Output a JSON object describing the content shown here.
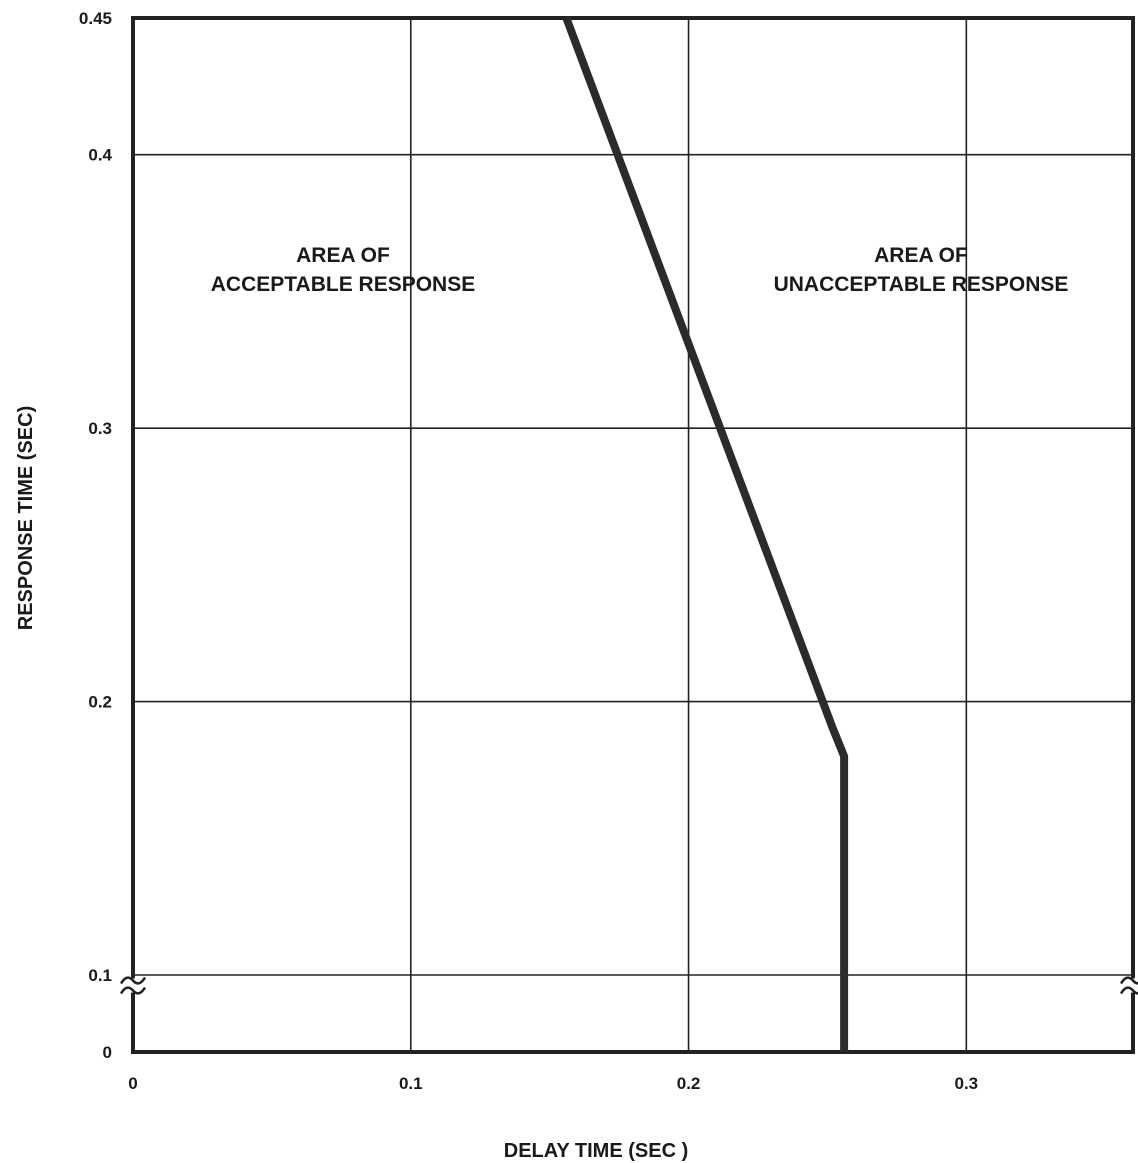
{
  "chart_data": {
    "type": "line",
    "title": "",
    "xlabel": "DELAY TIME (SEC )",
    "ylabel": "RESPONSE TIME (SEC)",
    "xlim": [
      0,
      0.36
    ],
    "ylim": [
      0.1,
      0.45
    ],
    "y_axis_break": true,
    "y_axis_zero_label": "0",
    "x_ticks": [
      {
        "value": 0,
        "label": "0"
      },
      {
        "value": 0.1,
        "label": "0.1"
      },
      {
        "value": 0.2,
        "label": "0.2"
      },
      {
        "value": 0.3,
        "label": "0.3"
      }
    ],
    "y_ticks": [
      {
        "value": 0.1,
        "label": "0.1"
      },
      {
        "value": 0.2,
        "label": "0.2"
      },
      {
        "value": 0.3,
        "label": "0.3"
      },
      {
        "value": 0.4,
        "label": "0.4"
      },
      {
        "value": 0.45,
        "label": "0.45"
      }
    ],
    "grid": true,
    "series": [
      {
        "x": [
          0.156,
          0.252,
          0.256,
          0.256
        ],
        "y": [
          0.45,
          0.19,
          0.18,
          0.0
        ]
      }
    ],
    "annotations": [
      {
        "line1": "AREA OF",
        "line2": "ACCEPTABLE RESPONSE"
      },
      {
        "line1": "AREA OF",
        "line2": "UNACCEPTABLE RESPONSE"
      }
    ],
    "colors": {
      "boundary": "#2b2b2b",
      "grid": "#222222",
      "text": "#1a1a1a"
    }
  }
}
